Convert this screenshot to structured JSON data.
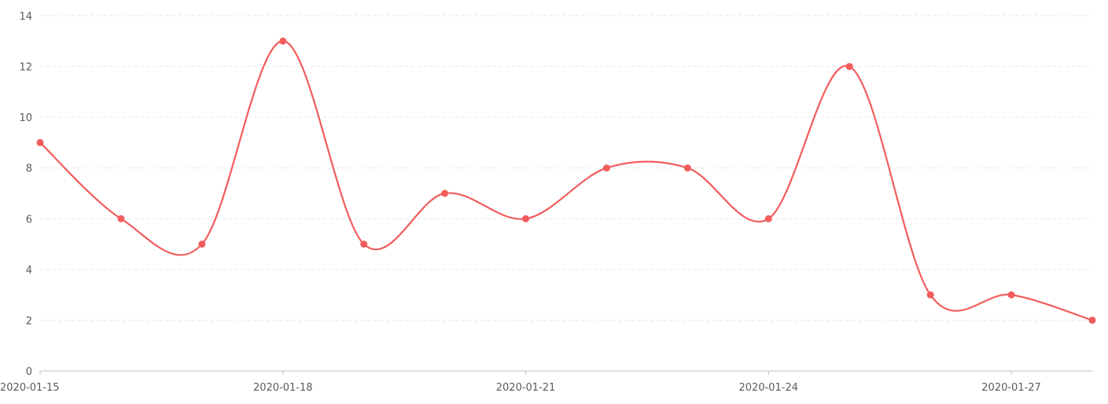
{
  "chart_data": {
    "type": "line",
    "x": [
      "2020-01-15",
      "2020-01-16",
      "2020-01-17",
      "2020-01-18",
      "2020-01-19",
      "2020-01-20",
      "2020-01-21",
      "2020-01-22",
      "2020-01-23",
      "2020-01-24",
      "2020-01-25",
      "2020-01-26",
      "2020-01-27",
      "2020-01-28"
    ],
    "x_tick_labels": [
      "2020-01-15",
      "2020-01-18",
      "2020-01-21",
      "2020-01-24",
      "2020-01-27"
    ],
    "y_tick_labels": [
      "0",
      "2",
      "4",
      "6",
      "8",
      "10",
      "12",
      "14"
    ],
    "series": [
      {
        "values": [
          9,
          6,
          5,
          13,
          5,
          7,
          6,
          8,
          8,
          6,
          12,
          3,
          3,
          2
        ],
        "color": "#f25c5c"
      }
    ],
    "ylim": [
      0,
      14
    ],
    "title": "",
    "xlabel": "",
    "ylabel": "",
    "grid": true,
    "line_style": "smooth",
    "markers": true
  }
}
